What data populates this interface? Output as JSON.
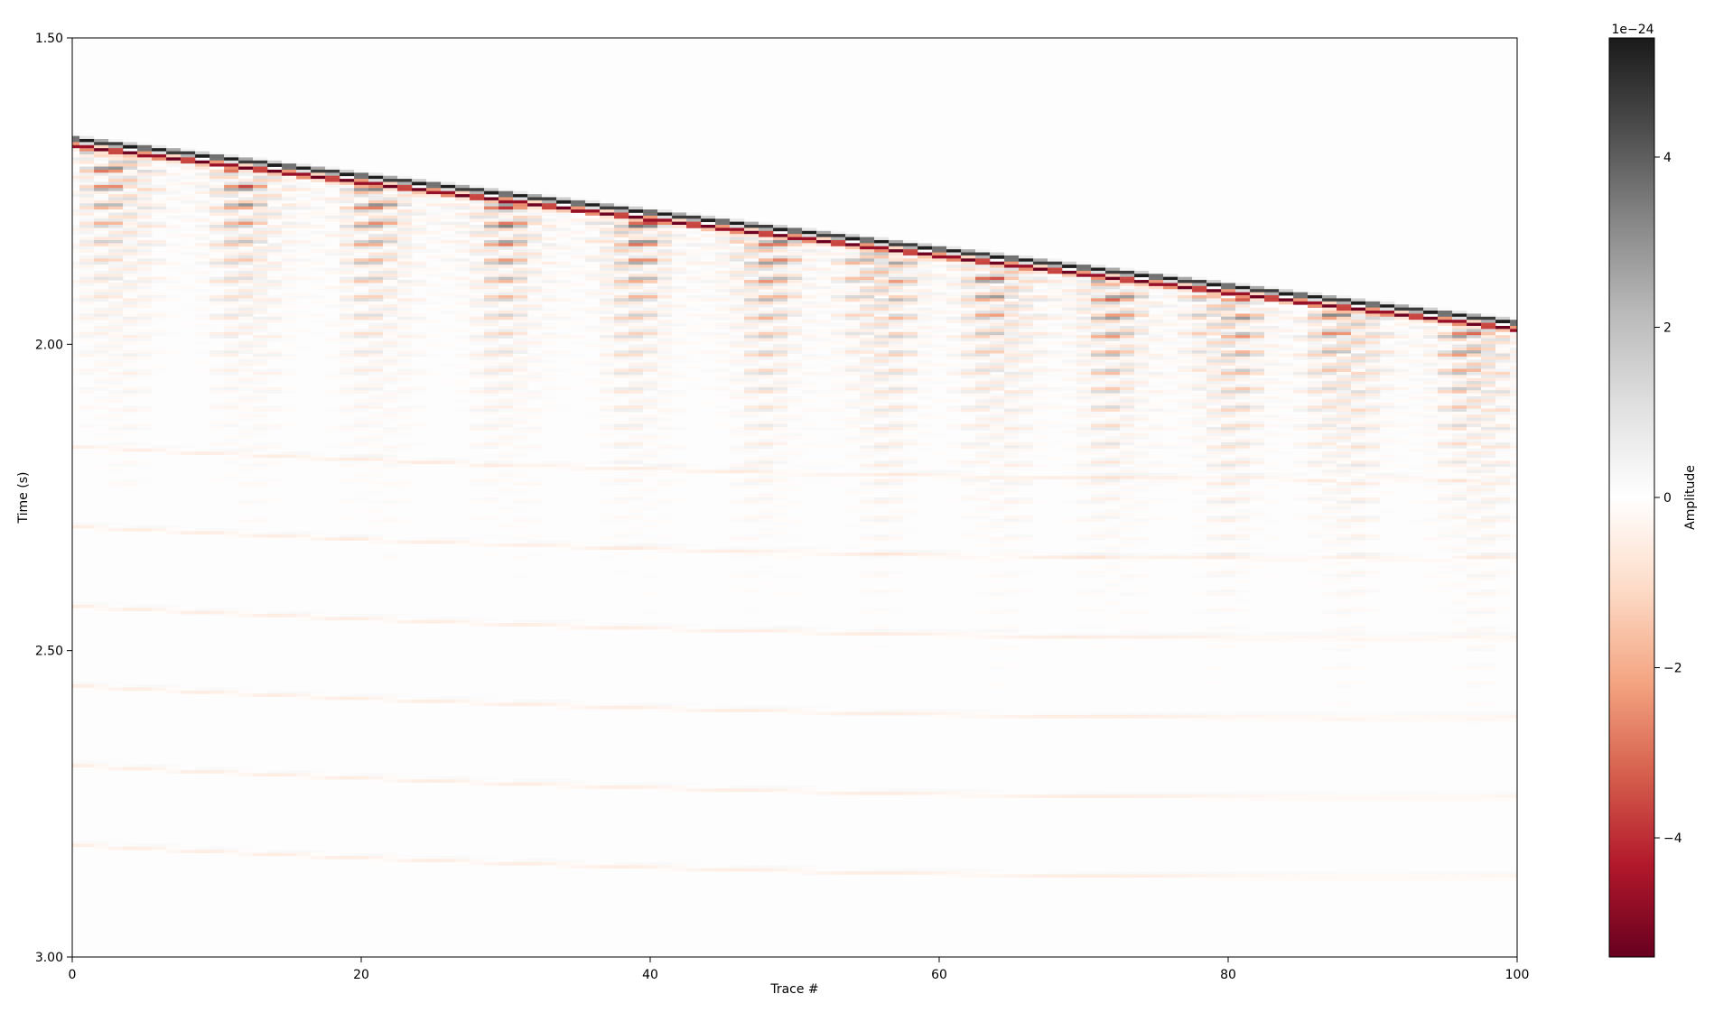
{
  "chart_data": {
    "type": "heatmap",
    "title": "",
    "xlabel": "Trace #",
    "ylabel": "Time (s)",
    "xlim": [
      0,
      100
    ],
    "ylim": [
      3.0,
      1.5
    ],
    "y_inverted": true,
    "x_ticks": [
      {
        "value": 0,
        "label": "0"
      },
      {
        "value": 20,
        "label": "20"
      },
      {
        "value": 40,
        "label": "40"
      },
      {
        "value": 60,
        "label": "60"
      },
      {
        "value": 80,
        "label": "80"
      },
      {
        "value": 100,
        "label": "100"
      }
    ],
    "y_ticks": [
      {
        "value": 1.5,
        "label": "1.50"
      },
      {
        "value": 2.0,
        "label": "2.00"
      },
      {
        "value": 2.5,
        "label": "2.50"
      },
      {
        "value": 3.0,
        "label": "3.00"
      }
    ],
    "colormap": "RdGy",
    "colorbar": {
      "label": "Amplitude",
      "scale_label": "1e−24",
      "range": [
        -5.4,
        5.4
      ],
      "ticks": [
        {
          "value": 4,
          "label": "4"
        },
        {
          "value": 2,
          "label": "2"
        },
        {
          "value": 0,
          "label": "0"
        },
        {
          "value": -2,
          "label": "−2"
        },
        {
          "value": -4,
          "label": "−4"
        }
      ],
      "colors": [
        "#67001f",
        "#b2182b",
        "#d6604d",
        "#f4a582",
        "#fddbc7",
        "#ffffff",
        "#e0e0e0",
        "#bababa",
        "#878787",
        "#4d4d4d",
        "#1a1a1a"
      ]
    },
    "direct_arrival": {
      "x": [
        0,
        100
      ],
      "t": [
        1.67,
        1.97
      ],
      "amplitude": [
        5.4,
        -5.4
      ]
    },
    "reflections_t0": [
      2.22,
      2.35,
      2.48,
      2.61,
      2.74,
      2.87
    ],
    "ringing_groups_x": [
      3,
      12,
      21,
      30,
      39,
      48,
      56,
      64,
      72,
      80,
      88,
      97
    ]
  }
}
